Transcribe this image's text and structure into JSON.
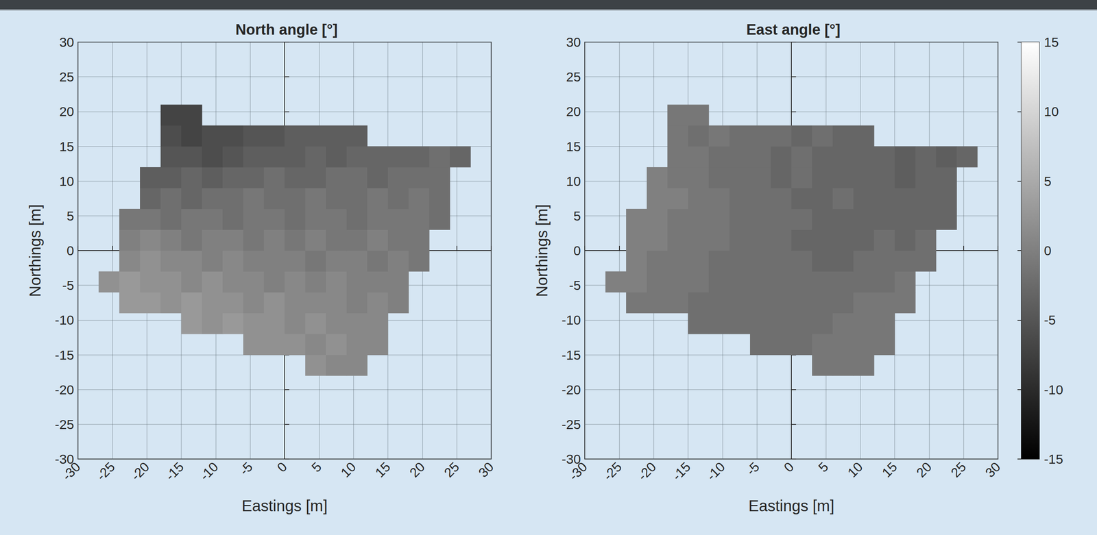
{
  "chart_data": [
    {
      "type": "heatmap",
      "title": "North angle [°]",
      "x_label": "Eastings [m]",
      "y_label": "Northings [m]",
      "xlim": [
        -30,
        30
      ],
      "ylim": [
        -30,
        30
      ],
      "xticks": [
        -30,
        -25,
        -20,
        -15,
        -10,
        -5,
        0,
        5,
        10,
        15,
        20,
        25,
        30
      ],
      "yticks": [
        -30,
        -25,
        -20,
        -15,
        -10,
        -5,
        0,
        5,
        10,
        15,
        20,
        25,
        30
      ],
      "grid": true,
      "x": [
        -28.5,
        -25.5,
        -22.5,
        -19.5,
        -16.5,
        -13.5,
        -10.5,
        -7.5,
        -4.5,
        -1.5,
        1.5,
        4.5,
        7.5,
        10.5,
        13.5,
        16.5,
        19.5,
        22.5,
        25.5,
        28.5
      ],
      "y": [
        -28.5,
        -25.5,
        -22.5,
        -19.5,
        -16.5,
        -13.5,
        -10.5,
        -7.5,
        -4.5,
        -1.5,
        1.5,
        4.5,
        7.5,
        10.5,
        13.5,
        16.5,
        19.5,
        22.5,
        25.5,
        28.5
      ],
      "values": [
        [
          null,
          null,
          null,
          null,
          null,
          null,
          null,
          null,
          null,
          null,
          null,
          null,
          null,
          null,
          null,
          null,
          null,
          null,
          null,
          null
        ],
        [
          null,
          null,
          null,
          null,
          null,
          null,
          null,
          null,
          null,
          null,
          null,
          null,
          null,
          null,
          null,
          null,
          null,
          null,
          null,
          null
        ],
        [
          null,
          null,
          null,
          null,
          null,
          null,
          null,
          null,
          null,
          null,
          null,
          null,
          null,
          null,
          null,
          null,
          null,
          null,
          null,
          null
        ],
        [
          null,
          null,
          null,
          null,
          null,
          null,
          null,
          null,
          null,
          null,
          null,
          null,
          null,
          null,
          null,
          null,
          null,
          null,
          null,
          null
        ],
        [
          null,
          null,
          null,
          null,
          null,
          null,
          null,
          null,
          null,
          null,
          null,
          2,
          1,
          1,
          null,
          null,
          null,
          null,
          null,
          null
        ],
        [
          null,
          null,
          null,
          null,
          null,
          null,
          null,
          null,
          2,
          2,
          2,
          1,
          2,
          1,
          1,
          null,
          null,
          null,
          null,
          null
        ],
        [
          null,
          null,
          null,
          null,
          null,
          3,
          2,
          3,
          2,
          2,
          1,
          2,
          1,
          1,
          1,
          null,
          null,
          null,
          null,
          null
        ],
        [
          null,
          null,
          3,
          3,
          2,
          3,
          2,
          2,
          1,
          2,
          1,
          1,
          1,
          0,
          1,
          0,
          null,
          null,
          null,
          null
        ],
        [
          null,
          2,
          3,
          2,
          2,
          1,
          2,
          1,
          1,
          0,
          1,
          0,
          1,
          0,
          0,
          0,
          null,
          null,
          null,
          null
        ],
        [
          null,
          null,
          1,
          2,
          1,
          1,
          0,
          1,
          0,
          0,
          0,
          -1,
          0,
          0,
          -1,
          0,
          -1,
          null,
          null,
          null
        ],
        [
          null,
          null,
          0,
          1,
          0,
          -1,
          0,
          0,
          -1,
          0,
          -1,
          0,
          -1,
          -1,
          0,
          -1,
          -1,
          null,
          null,
          null
        ],
        [
          null,
          null,
          -1,
          -1,
          -2,
          -1,
          -1,
          -2,
          -1,
          -1,
          -2,
          -1,
          -1,
          -2,
          -1,
          -1,
          -1,
          -2,
          null,
          null
        ],
        [
          null,
          null,
          null,
          -3,
          -2,
          -3,
          -2,
          -2,
          -1,
          -2,
          -2,
          -1,
          -2,
          -2,
          -1,
          -2,
          -1,
          -2,
          null,
          null
        ],
        [
          null,
          null,
          null,
          -4,
          -4,
          -3,
          -4,
          -3,
          -3,
          -2,
          -3,
          -3,
          -2,
          -2,
          -3,
          -2,
          -2,
          -2,
          null,
          null
        ],
        [
          null,
          null,
          null,
          null,
          -5,
          -5,
          -6,
          -5,
          -4,
          -4,
          -4,
          -3,
          -4,
          -3,
          -3,
          -3,
          -3,
          -2,
          -3,
          null
        ],
        [
          null,
          null,
          null,
          null,
          -6,
          -7,
          -6,
          -6,
          -5,
          -5,
          -4,
          -4,
          -4,
          -4,
          null,
          null,
          null,
          null,
          null,
          null
        ],
        [
          null,
          null,
          null,
          null,
          -7,
          -7,
          null,
          null,
          null,
          null,
          null,
          null,
          null,
          null,
          null,
          null,
          null,
          null,
          null,
          null
        ],
        [
          null,
          null,
          null,
          null,
          null,
          null,
          null,
          null,
          null,
          null,
          null,
          null,
          null,
          null,
          null,
          null,
          null,
          null,
          null,
          null
        ],
        [
          null,
          null,
          null,
          null,
          null,
          null,
          null,
          null,
          null,
          null,
          null,
          null,
          null,
          null,
          null,
          null,
          null,
          null,
          null,
          null
        ],
        [
          null,
          null,
          null,
          null,
          null,
          null,
          null,
          null,
          null,
          null,
          null,
          null,
          null,
          null,
          null,
          null,
          null,
          null,
          null,
          null
        ]
      ]
    },
    {
      "type": "heatmap",
      "title": "East angle [°]",
      "x_label": "Eastings [m]",
      "y_label": "Northings [m]",
      "xlim": [
        -30,
        30
      ],
      "ylim": [
        -30,
        30
      ],
      "xticks": [
        -30,
        -25,
        -20,
        -15,
        -10,
        -5,
        0,
        5,
        10,
        15,
        20,
        25,
        30
      ],
      "yticks": [
        -30,
        -25,
        -20,
        -15,
        -10,
        -5,
        0,
        5,
        10,
        15,
        20,
        25,
        30
      ],
      "grid": true,
      "x": [
        -28.5,
        -25.5,
        -22.5,
        -19.5,
        -16.5,
        -13.5,
        -10.5,
        -7.5,
        -4.5,
        -1.5,
        1.5,
        4.5,
        7.5,
        10.5,
        13.5,
        16.5,
        19.5,
        22.5,
        25.5,
        28.5
      ],
      "y": [
        -28.5,
        -25.5,
        -22.5,
        -19.5,
        -16.5,
        -13.5,
        -10.5,
        -7.5,
        -4.5,
        -1.5,
        1.5,
        4.5,
        7.5,
        10.5,
        13.5,
        16.5,
        19.5,
        22.5,
        25.5,
        28.5
      ],
      "values": [
        [
          null,
          null,
          null,
          null,
          null,
          null,
          null,
          null,
          null,
          null,
          null,
          null,
          null,
          null,
          null,
          null,
          null,
          null,
          null,
          null
        ],
        [
          null,
          null,
          null,
          null,
          null,
          null,
          null,
          null,
          null,
          null,
          null,
          null,
          null,
          null,
          null,
          null,
          null,
          null,
          null,
          null
        ],
        [
          null,
          null,
          null,
          null,
          null,
          null,
          null,
          null,
          null,
          null,
          null,
          null,
          null,
          null,
          null,
          null,
          null,
          null,
          null,
          null
        ],
        [
          null,
          null,
          null,
          null,
          null,
          null,
          null,
          null,
          null,
          null,
          null,
          null,
          null,
          null,
          null,
          null,
          null,
          null,
          null,
          null
        ],
        [
          null,
          null,
          null,
          null,
          null,
          null,
          null,
          null,
          null,
          null,
          null,
          -1,
          -1,
          -1,
          null,
          null,
          null,
          null,
          null,
          null
        ],
        [
          null,
          null,
          null,
          null,
          null,
          null,
          null,
          null,
          -2,
          -2,
          -2,
          -1,
          -1,
          -1,
          -1,
          null,
          null,
          null,
          null,
          null
        ],
        [
          null,
          null,
          null,
          null,
          null,
          -2,
          -2,
          -2,
          -2,
          -2,
          -2,
          -2,
          -1,
          -1,
          -1,
          null,
          null,
          null,
          null,
          null
        ],
        [
          null,
          null,
          -1,
          -1,
          -1,
          -2,
          -2,
          -2,
          -2,
          -2,
          -2,
          -2,
          -2,
          -1,
          -1,
          -1,
          null,
          null,
          null,
          null
        ],
        [
          null,
          0,
          0,
          -1,
          -1,
          -1,
          -2,
          -2,
          -2,
          -2,
          -2,
          -2,
          -2,
          -2,
          -2,
          -1,
          null,
          null,
          null,
          null
        ],
        [
          null,
          null,
          0,
          -1,
          -1,
          -1,
          -2,
          -2,
          -2,
          -2,
          -2,
          -3,
          -3,
          -2,
          -2,
          -2,
          -2,
          null,
          null,
          null
        ],
        [
          null,
          null,
          0,
          0,
          -1,
          -1,
          -1,
          -2,
          -2,
          -2,
          -3,
          -3,
          -3,
          -3,
          -2,
          -3,
          -2,
          null,
          null,
          null
        ],
        [
          null,
          null,
          0,
          0,
          -1,
          -1,
          -1,
          -2,
          -2,
          -2,
          -2,
          -3,
          -3,
          -3,
          -3,
          -3,
          -3,
          -3,
          null,
          null
        ],
        [
          null,
          null,
          null,
          0,
          0,
          -1,
          -1,
          -2,
          -2,
          -2,
          -3,
          -3,
          -2,
          -3,
          -3,
          -3,
          -3,
          -3,
          null,
          null
        ],
        [
          null,
          null,
          null,
          0,
          -1,
          -1,
          -2,
          -2,
          -2,
          -3,
          -2,
          -3,
          -3,
          -3,
          -3,
          -4,
          -3,
          -3,
          null,
          null
        ],
        [
          null,
          null,
          null,
          null,
          -1,
          -1,
          -2,
          -2,
          -2,
          -3,
          -2,
          -3,
          -3,
          -3,
          -3,
          -4,
          -3,
          -4,
          -3,
          null
        ],
        [
          null,
          null,
          null,
          null,
          -1,
          -2,
          -1,
          -2,
          -2,
          -2,
          -3,
          -2,
          -3,
          -3,
          null,
          null,
          null,
          null,
          null,
          null
        ],
        [
          null,
          null,
          null,
          null,
          -1,
          -1,
          null,
          null,
          null,
          null,
          null,
          null,
          null,
          null,
          null,
          null,
          null,
          null,
          null,
          null
        ],
        [
          null,
          null,
          null,
          null,
          null,
          null,
          null,
          null,
          null,
          null,
          null,
          null,
          null,
          null,
          null,
          null,
          null,
          null,
          null,
          null
        ],
        [
          null,
          null,
          null,
          null,
          null,
          null,
          null,
          null,
          null,
          null,
          null,
          null,
          null,
          null,
          null,
          null,
          null,
          null,
          null,
          null
        ],
        [
          null,
          null,
          null,
          null,
          null,
          null,
          null,
          null,
          null,
          null,
          null,
          null,
          null,
          null,
          null,
          null,
          null,
          null,
          null,
          null
        ]
      ],
      "colorbar": {
        "range": [
          -15,
          15
        ],
        "ticks": [
          -15,
          -10,
          -5,
          0,
          5,
          10,
          15
        ],
        "colors": [
          "#000000",
          "#ffffff"
        ]
      }
    }
  ]
}
